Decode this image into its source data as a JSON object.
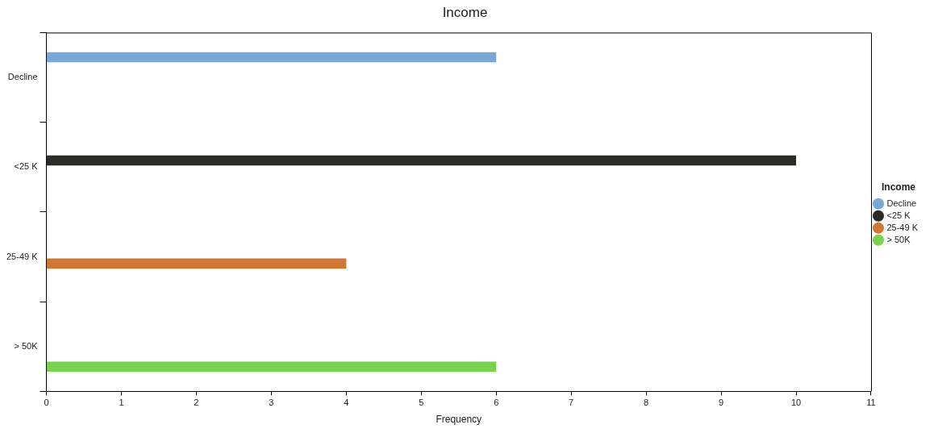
{
  "chart_data": {
    "type": "bar",
    "orientation": "horizontal",
    "title": "Income",
    "xlabel": "Frequency",
    "legend_title": "Income",
    "legend": "right",
    "grid": false,
    "categories": [
      "Decline",
      "<25 K",
      "25-49 K",
      "> 50K"
    ],
    "xlim": [
      0,
      11
    ],
    "xticks": [
      0,
      1,
      2,
      3,
      4,
      5,
      6,
      7,
      8,
      9,
      10,
      11
    ],
    "series": [
      {
        "name": "Decline",
        "color": "#7ba7d6",
        "values": [
          6,
          null,
          null,
          null
        ]
      },
      {
        "name": "<25 K",
        "color": "#2b2b28",
        "values": [
          null,
          10,
          null,
          null
        ]
      },
      {
        "name": "25-49 K",
        "color": "#d27634",
        "values": [
          null,
          null,
          4,
          null
        ]
      },
      {
        "name": "> 50K",
        "color": "#77d34a",
        "values": [
          null,
          null,
          null,
          6
        ]
      }
    ]
  }
}
